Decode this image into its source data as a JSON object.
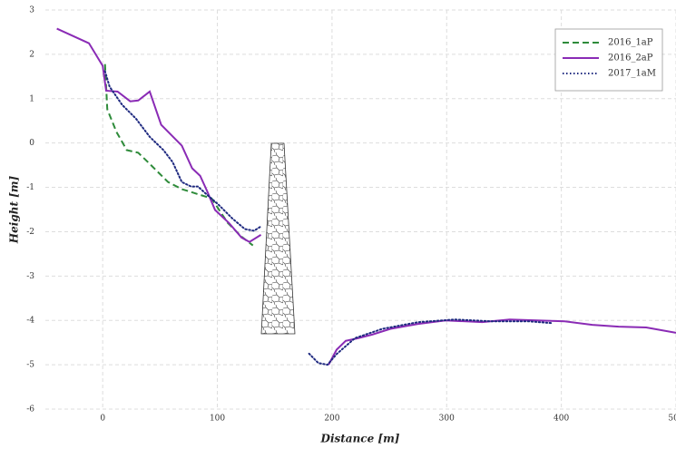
{
  "chart_data": {
    "type": "line",
    "xlabel": "Distance [m]",
    "ylabel": "Height [m]",
    "xlim": [
      -50,
      500
    ],
    "xticks": [
      0,
      100,
      200,
      300,
      400,
      500
    ],
    "ylim": [
      -6,
      3
    ],
    "yticks": [
      -6,
      -5,
      -4,
      -3,
      -2,
      -1,
      0,
      1,
      2,
      3
    ],
    "grid": true,
    "legend": "upper right",
    "series": [
      {
        "name": "2016_1aP",
        "color": "#2e8b3a",
        "style": "dashed",
        "x": [
          2,
          4,
          12,
          21,
          31,
          41,
          57,
          69,
          79,
          85,
          95,
          109,
          121,
          131
        ],
        "values": [
          1.78,
          0.76,
          0.25,
          -0.16,
          -0.22,
          -0.47,
          -0.88,
          -1.04,
          -1.12,
          -1.17,
          -1.25,
          -1.8,
          -2.11,
          -2.31
        ]
      },
      {
        "name": "2016_2aP",
        "color": "#8a2bb5",
        "style": "solid",
        "x": [
          -40,
          -12,
          0,
          3,
          13,
          24,
          31,
          41,
          51,
          69,
          78,
          85,
          91,
          98,
          110,
          121,
          128,
          138,
          160,
          197,
          204,
          212,
          223,
          235,
          251,
          275,
          299,
          331,
          355,
          379,
          403,
          427,
          450,
          474,
          500
        ],
        "values": [
          2.58,
          2.25,
          1.74,
          1.18,
          1.16,
          0.94,
          0.96,
          1.16,
          0.41,
          -0.06,
          -0.57,
          -0.74,
          -1.08,
          -1.51,
          -1.8,
          -2.13,
          -2.23,
          -2.07,
          null,
          -5.0,
          -4.66,
          -4.46,
          -4.4,
          -4.32,
          -4.19,
          -4.08,
          -4.0,
          -4.04,
          -3.98,
          -4.0,
          -4.02,
          -4.1,
          -4.14,
          -4.16,
          -4.28
        ]
      },
      {
        "name": "2017_1aM",
        "color": "#1f2a80",
        "style": "dotted",
        "x": [
          2,
          6,
          17,
          29,
          41,
          53,
          61,
          69,
          77,
          83,
          89,
          101,
          113,
          124,
          132,
          138,
          160,
          180,
          188,
          196,
          204,
          220,
          244,
          275,
          307,
          339,
          371,
          391
        ],
        "values": [
          1.62,
          1.27,
          0.86,
          0.55,
          0.14,
          -0.16,
          -0.43,
          -0.88,
          -0.98,
          -0.98,
          -1.12,
          -1.39,
          -1.7,
          -1.94,
          -1.98,
          -1.88,
          null,
          -4.75,
          -4.96,
          -5.0,
          -4.76,
          -4.4,
          -4.19,
          -4.04,
          -3.98,
          -4.02,
          -4.02,
          -4.06
        ]
      }
    ]
  }
}
